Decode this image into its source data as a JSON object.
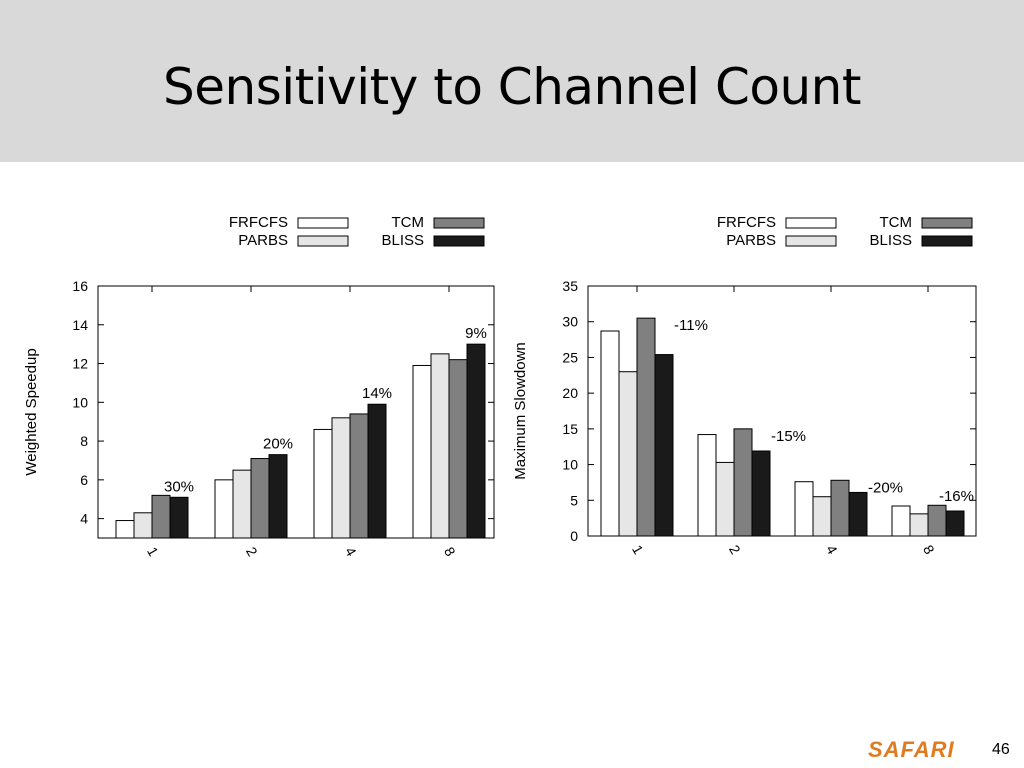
{
  "slide": {
    "title": "Sensitivity to Channel Count",
    "logo": "SAFARI",
    "page_number": "46"
  },
  "colors": {
    "FRFCFS": "#ffffff",
    "PARBS": "#e6e6e6",
    "TCM": "#808080",
    "BLISS": "#1a1a1a",
    "title_band": "#d9d9d9",
    "logo": "#e07b1f"
  },
  "chart_data": [
    {
      "type": "bar",
      "title": "",
      "xlabel": "",
      "ylabel": "Weighted Speedup",
      "categories": [
        "1",
        "2",
        "4",
        "8"
      ],
      "ylim": [
        3,
        16
      ],
      "yticks": [
        4,
        6,
        8,
        10,
        12,
        14,
        16
      ],
      "ytick_labels": [
        "4",
        "6",
        "8",
        "10",
        "12",
        "14",
        "16"
      ],
      "legend": {
        "position": "top",
        "labels": [
          "FRFCFS",
          "TCM",
          "PARBS",
          "BLISS"
        ]
      },
      "series": [
        {
          "name": "FRFCFS",
          "values": [
            3.9,
            6.0,
            8.6,
            11.9
          ]
        },
        {
          "name": "PARBS",
          "values": [
            4.3,
            6.5,
            9.2,
            12.5
          ]
        },
        {
          "name": "TCM",
          "values": [
            5.2,
            7.1,
            9.4,
            12.2
          ]
        },
        {
          "name": "BLISS",
          "values": [
            5.1,
            7.3,
            9.9,
            13.0
          ]
        }
      ],
      "annotations": [
        "30%",
        "20%",
        "14%",
        "9%"
      ]
    },
    {
      "type": "bar",
      "title": "",
      "xlabel": "",
      "ylabel": "Maximum Slowdown",
      "categories": [
        "1",
        "2",
        "4",
        "8"
      ],
      "ylim": [
        0,
        35
      ],
      "yticks": [
        0,
        5,
        10,
        15,
        20,
        25,
        30,
        35
      ],
      "ytick_labels": [
        "0",
        "5",
        "10",
        "15",
        "20",
        "25",
        "30",
        "35"
      ],
      "legend": {
        "position": "top",
        "labels": [
          "FRFCFS",
          "TCM",
          "PARBS",
          "BLISS"
        ]
      },
      "series": [
        {
          "name": "FRFCFS",
          "values": [
            28.7,
            14.2,
            7.6,
            4.2
          ]
        },
        {
          "name": "PARBS",
          "values": [
            23.0,
            10.3,
            5.5,
            3.1
          ]
        },
        {
          "name": "TCM",
          "values": [
            30.5,
            15.0,
            7.8,
            4.3
          ]
        },
        {
          "name": "BLISS",
          "values": [
            25.4,
            11.9,
            6.1,
            3.5
          ]
        }
      ],
      "annotations": [
        "-11%",
        "-15%",
        "-20%",
        "-16%"
      ]
    }
  ]
}
